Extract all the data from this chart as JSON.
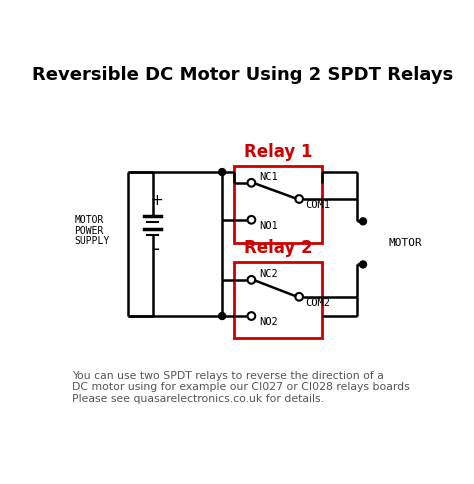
{
  "title": "Reversible DC Motor Using 2 SPDT Relays",
  "title_fontsize": 13,
  "footer_lines": [
    "You can use two SPDT relays to reverse the direction of a",
    "DC motor using for example our CI027 or CI028 relays boards",
    "Please see quasarelectronics.co.uk for details."
  ],
  "relay1_label": "Relay 1",
  "relay2_label": "Relay 2",
  "bg_color": "#ffffff",
  "line_color": "#000000",
  "relay_box_color": "#cc0000",
  "relay_label_color": "#cc0000",
  "text_color": "#000000",
  "motor_label": "MOTOR",
  "supply_labels": [
    "MOTOR",
    "POWER",
    "SUPPLY"
  ],
  "nc1_label": "NC1",
  "no1_label": "NO1",
  "com1_label": "COM1",
  "nc2_label": "NC2",
  "no2_label": "NO2",
  "com2_label": "COM2",
  "plus_label": "+",
  "minus_label": "-"
}
